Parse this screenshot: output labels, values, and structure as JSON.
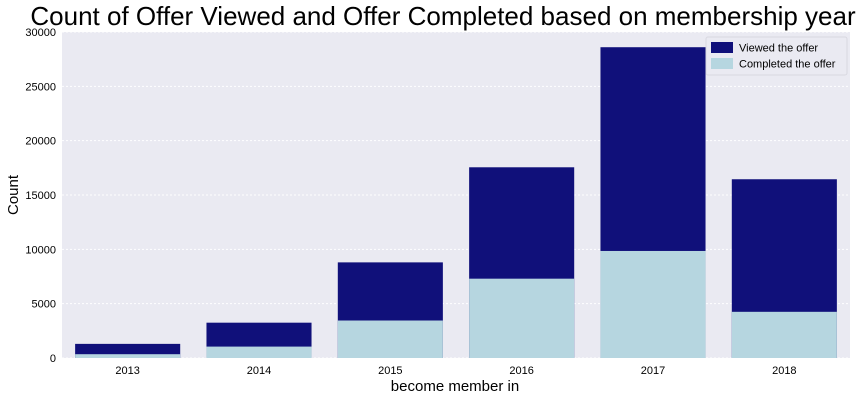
{
  "chart_data": {
    "type": "bar",
    "title": "Count of Offer Viewed and Offer Completed based on membership year",
    "xlabel": "become member in",
    "ylabel": "Count",
    "categories": [
      "2013",
      "2014",
      "2015",
      "2016",
      "2017",
      "2018"
    ],
    "series": [
      {
        "name": "Viewed the offer",
        "color": "#10107a",
        "values": [
          1300,
          3250,
          8800,
          17550,
          28600,
          16450
        ]
      },
      {
        "name": "Completed the offer",
        "color": "#b6d6e0",
        "values": [
          350,
          1050,
          3450,
          7300,
          9850,
          4250
        ]
      }
    ],
    "overlay": true,
    "ylim": [
      0,
      30000
    ],
    "yticks": [
      0,
      5000,
      10000,
      15000,
      20000,
      25000,
      30000
    ],
    "grid": true,
    "legend": "top-right",
    "plot_background": "#eaeaf2"
  }
}
